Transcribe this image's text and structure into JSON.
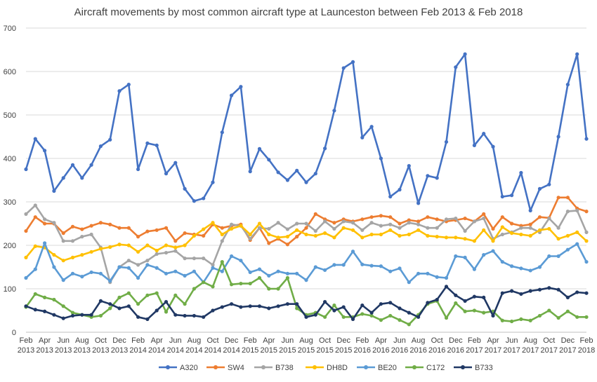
{
  "chart_data": {
    "type": "line",
    "title": "Aircraft movements by most common aircraft type at Launceston between  Feb 2013 & Feb 2018",
    "xlabel": "",
    "ylabel": "",
    "ylim": [
      0,
      700
    ],
    "yticks": [
      0,
      100,
      200,
      300,
      400,
      500,
      600,
      700
    ],
    "grid": "horizontal",
    "legend_position": "bottom",
    "x": [
      "Feb 2013",
      "Mar 2013",
      "Apr 2013",
      "May 2013",
      "Jun 2013",
      "Jul 2013",
      "Aug 2013",
      "Sep 2013",
      "Oct 2013",
      "Nov 2013",
      "Dec 2013",
      "Jan 2014",
      "Feb 2014",
      "Mar 2014",
      "Apr 2014",
      "May 2014",
      "Jun 2014",
      "Jul 2014",
      "Aug 2014",
      "Sep 2014",
      "Oct 2014",
      "Nov 2014",
      "Dec 2014",
      "Jan 2015",
      "Feb 2015",
      "Mar 2015",
      "Apr 2015",
      "May 2015",
      "Jun 2015",
      "Jul 2015",
      "Aug 2015",
      "Sep 2015",
      "Oct 2015",
      "Nov 2015",
      "Dec 2015",
      "Jan 2016",
      "Feb 2016",
      "Mar 2016",
      "Apr 2016",
      "May 2016",
      "Jun 2016",
      "Jul 2016",
      "Aug 2016",
      "Sep 2016",
      "Oct 2016",
      "Nov 2016",
      "Dec 2016",
      "Jan 2017",
      "Feb 2017",
      "Mar 2017",
      "Apr 2017",
      "May 2017",
      "Jun 2017",
      "Jul 2017",
      "Aug 2017",
      "Sep 2017",
      "Oct 2017",
      "Nov 2017",
      "Dec 2017",
      "Jan 2018",
      "Feb 2018"
    ],
    "tick_labels": [
      {
        "month": "Feb",
        "year": "2013"
      },
      {
        "month": "Apr",
        "year": "2013"
      },
      {
        "month": "Jun",
        "year": "2013"
      },
      {
        "month": "Aug",
        "year": "2013"
      },
      {
        "month": "Oct",
        "year": "2013"
      },
      {
        "month": "Dec",
        "year": "2013"
      },
      {
        "month": "Feb",
        "year": "2014"
      },
      {
        "month": "Apr",
        "year": "2014"
      },
      {
        "month": "Jun",
        "year": "2014"
      },
      {
        "month": "Aug",
        "year": "2014"
      },
      {
        "month": "Oct",
        "year": "2014"
      },
      {
        "month": "Dec",
        "year": "2014"
      },
      {
        "month": "Feb",
        "year": "2015"
      },
      {
        "month": "Apr",
        "year": "2015"
      },
      {
        "month": "Jun",
        "year": "2015"
      },
      {
        "month": "Aug",
        "year": "2015"
      },
      {
        "month": "Oct",
        "year": "2015"
      },
      {
        "month": "Dec",
        "year": "2015"
      },
      {
        "month": "Feb",
        "year": "2016"
      },
      {
        "month": "Apr",
        "year": "2016"
      },
      {
        "month": "Jun",
        "year": "2016"
      },
      {
        "month": "Aug",
        "year": "2016"
      },
      {
        "month": "Oct",
        "year": "2016"
      },
      {
        "month": "Dec",
        "year": "2016"
      },
      {
        "month": "Feb",
        "year": "2017"
      },
      {
        "month": "Apr",
        "year": "2017"
      },
      {
        "month": "Jun",
        "year": "2017"
      },
      {
        "month": "Aug",
        "year": "2017"
      },
      {
        "month": "Oct",
        "year": "2017"
      },
      {
        "month": "Dec",
        "year": "2017"
      },
      {
        "month": "Feb",
        "year": "2018"
      }
    ],
    "series": [
      {
        "name": "A320",
        "color": "#4472C4",
        "values": [
          375,
          445,
          418,
          325,
          355,
          385,
          355,
          385,
          428,
          443,
          555,
          570,
          375,
          435,
          430,
          365,
          390,
          330,
          302,
          308,
          345,
          460,
          545,
          565,
          370,
          422,
          397,
          368,
          350,
          372,
          345,
          365,
          423,
          510,
          608,
          622,
          448,
          473,
          400,
          312,
          328,
          383,
          297,
          360,
          355,
          438,
          610,
          640,
          430,
          457,
          427,
          312,
          315,
          367,
          280,
          330,
          340,
          450,
          570,
          640,
          445
        ]
      },
      {
        "name": "SW4",
        "color": "#ED7D31",
        "values": [
          233,
          265,
          250,
          250,
          228,
          243,
          237,
          245,
          252,
          248,
          240,
          240,
          220,
          232,
          235,
          240,
          210,
          228,
          225,
          222,
          248,
          240,
          245,
          248,
          212,
          240,
          205,
          215,
          202,
          220,
          240,
          272,
          260,
          252,
          260,
          255,
          260,
          265,
          268,
          265,
          250,
          258,
          255,
          265,
          260,
          255,
          258,
          262,
          255,
          272,
          238,
          265,
          250,
          245,
          248,
          265,
          263,
          310,
          310,
          285,
          278
        ]
      },
      {
        "name": "B738",
        "color": "#A5A5A5",
        "values": [
          272,
          292,
          260,
          252,
          210,
          210,
          220,
          225,
          195,
          115,
          150,
          165,
          155,
          165,
          180,
          183,
          187,
          170,
          170,
          170,
          155,
          210,
          248,
          245,
          215,
          240,
          238,
          252,
          237,
          250,
          250,
          233,
          255,
          238,
          255,
          252,
          235,
          252,
          245,
          248,
          240,
          252,
          248,
          240,
          240,
          260,
          262,
          233,
          255,
          262,
          215,
          225,
          230,
          240,
          240,
          230,
          262,
          240,
          278,
          280,
          230
        ]
      },
      {
        "name": "DH8D",
        "color": "#FFC000",
        "values": [
          172,
          198,
          195,
          178,
          165,
          172,
          178,
          185,
          192,
          196,
          202,
          200,
          185,
          200,
          188,
          200,
          195,
          200,
          222,
          237,
          252,
          225,
          238,
          245,
          225,
          250,
          225,
          218,
          220,
          235,
          225,
          222,
          228,
          218,
          240,
          235,
          218,
          225,
          225,
          235,
          222,
          225,
          235,
          222,
          220,
          218,
          218,
          215,
          210,
          235,
          210,
          242,
          228,
          225,
          222,
          235,
          238,
          215,
          222,
          230,
          210
        ]
      },
      {
        "name": "BE20",
        "color": "#5B9BD5",
        "values": [
          125,
          145,
          205,
          150,
          120,
          135,
          128,
          138,
          135,
          118,
          150,
          148,
          125,
          155,
          148,
          135,
          140,
          130,
          140,
          115,
          148,
          140,
          175,
          165,
          138,
          145,
          130,
          140,
          135,
          135,
          120,
          150,
          143,
          155,
          155,
          186,
          156,
          153,
          152,
          140,
          147,
          115,
          135,
          135,
          127,
          125,
          175,
          172,
          145,
          178,
          187,
          162,
          152,
          147,
          142,
          150,
          175,
          175,
          190,
          203,
          162
        ]
      },
      {
        "name": "C172",
        "color": "#70AD47",
        "values": [
          58,
          88,
          80,
          75,
          60,
          45,
          40,
          35,
          38,
          55,
          80,
          90,
          65,
          85,
          90,
          47,
          85,
          65,
          100,
          115,
          105,
          162,
          110,
          112,
          112,
          125,
          100,
          100,
          125,
          55,
          40,
          45,
          35,
          62,
          35,
          35,
          42,
          38,
          28,
          38,
          28,
          18,
          40,
          65,
          72,
          33,
          67,
          48,
          50,
          45,
          48,
          27,
          25,
          30,
          27,
          38,
          50,
          33,
          48,
          35,
          35
        ]
      },
      {
        "name": "B733",
        "color": "#203864",
        "values": [
          60,
          52,
          48,
          40,
          32,
          38,
          40,
          40,
          72,
          65,
          55,
          60,
          35,
          30,
          50,
          70,
          40,
          38,
          38,
          35,
          50,
          58,
          65,
          58,
          60,
          60,
          55,
          60,
          65,
          65,
          35,
          40,
          70,
          50,
          58,
          30,
          62,
          45,
          65,
          68,
          55,
          45,
          35,
          68,
          75,
          105,
          85,
          72,
          82,
          80,
          38,
          90,
          95,
          88,
          95,
          98,
          102,
          98,
          80,
          92,
          90
        ]
      }
    ]
  }
}
